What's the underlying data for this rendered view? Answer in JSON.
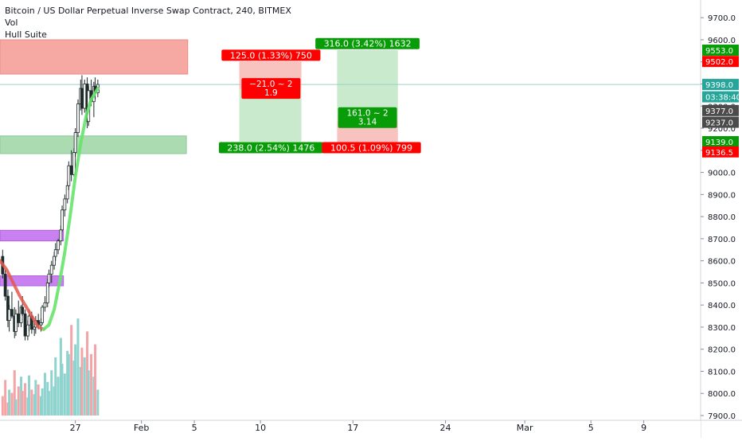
{
  "header": {
    "title": "Bitcoin / US Dollar Perpetual Inverse Swap Contract, 240, BITMEX",
    "indicators": [
      "Vol",
      "Hull Suite"
    ]
  },
  "colors": {
    "bull": "#26a69a",
    "candle": "#1f2a2a",
    "hull_up": "#66e36b",
    "hull_down": "#e0584d",
    "vol_red": "#f4a3a6",
    "vol_teal": "#8fd3cf",
    "zone_red": "#f6a39e",
    "zone_green": "#a5d9ad",
    "zone_purple": "#c67af0",
    "badge_red": "#ff0000",
    "badge_green": "#089c08",
    "badge_dark": "#4b4b4b",
    "badge_teal": "#26a69a"
  },
  "chart_data": {
    "type": "candlestick",
    "symbol": "Bitcoin / US Dollar Perpetual Inverse Swap Contract",
    "interval": "240",
    "exchange": "BITMEX",
    "ylim": [
      7900,
      9780
    ],
    "y_ticks": [
      "7900.0",
      "8000.0",
      "8100.0",
      "8200.0",
      "8300.0",
      "8400.0",
      "8500.0",
      "8600.0",
      "8700.0",
      "8800.0",
      "8900.0",
      "9000.0",
      "9100.0",
      "9200.0",
      "9300.0",
      "9400.0",
      "9500.0",
      "9600.0",
      "9700.0"
    ],
    "x_ticks": [
      "27",
      "Feb",
      "5",
      "10",
      "17",
      "24",
      "Mar",
      "5",
      "9"
    ],
    "x_tick_days": [
      27,
      32,
      36,
      41,
      48,
      55,
      61,
      66,
      70
    ],
    "x_range_days": [
      21.3,
      74.3
    ],
    "candles": [
      {
        "t": 21.5,
        "o": 8620,
        "h": 8650,
        "l": 8520,
        "c": 8540
      },
      {
        "t": 21.7,
        "o": 8540,
        "h": 8560,
        "l": 8420,
        "c": 8440
      },
      {
        "t": 21.9,
        "o": 8440,
        "h": 8470,
        "l": 8300,
        "c": 8330
      },
      {
        "t": 22.0,
        "o": 8330,
        "h": 8400,
        "l": 8280,
        "c": 8380
      },
      {
        "t": 22.2,
        "o": 8380,
        "h": 8460,
        "l": 8340,
        "c": 8350
      },
      {
        "t": 22.4,
        "o": 8350,
        "h": 8390,
        "l": 8250,
        "c": 8280
      },
      {
        "t": 22.5,
        "o": 8280,
        "h": 8380,
        "l": 8260,
        "c": 8360
      },
      {
        "t": 22.7,
        "o": 8360,
        "h": 8420,
        "l": 8300,
        "c": 8320
      },
      {
        "t": 22.9,
        "o": 8320,
        "h": 8400,
        "l": 8300,
        "c": 8390
      },
      {
        "t": 23.0,
        "o": 8390,
        "h": 8440,
        "l": 8350,
        "c": 8360
      },
      {
        "t": 23.2,
        "o": 8360,
        "h": 8380,
        "l": 8240,
        "c": 8260
      },
      {
        "t": 23.4,
        "o": 8260,
        "h": 8330,
        "l": 8240,
        "c": 8310
      },
      {
        "t": 23.5,
        "o": 8310,
        "h": 8380,
        "l": 8280,
        "c": 8350
      },
      {
        "t": 23.7,
        "o": 8350,
        "h": 8370,
        "l": 8270,
        "c": 8290
      },
      {
        "t": 23.9,
        "o": 8290,
        "h": 8320,
        "l": 8260,
        "c": 8300
      },
      {
        "t": 24.0,
        "o": 8300,
        "h": 8350,
        "l": 8270,
        "c": 8330
      },
      {
        "t": 24.2,
        "o": 8330,
        "h": 8360,
        "l": 8290,
        "c": 8310
      },
      {
        "t": 24.4,
        "o": 8310,
        "h": 8340,
        "l": 8280,
        "c": 8320
      },
      {
        "t": 24.5,
        "o": 8320,
        "h": 8400,
        "l": 8310,
        "c": 8390
      },
      {
        "t": 24.7,
        "o": 8390,
        "h": 8440,
        "l": 8370,
        "c": 8410
      },
      {
        "t": 24.9,
        "o": 8410,
        "h": 8520,
        "l": 8390,
        "c": 8500
      },
      {
        "t": 25.0,
        "o": 8500,
        "h": 8560,
        "l": 8480,
        "c": 8540
      },
      {
        "t": 25.2,
        "o": 8540,
        "h": 8600,
        "l": 8500,
        "c": 8580
      },
      {
        "t": 25.4,
        "o": 8580,
        "h": 8640,
        "l": 8560,
        "c": 8620
      },
      {
        "t": 25.5,
        "o": 8620,
        "h": 8680,
        "l": 8600,
        "c": 8650
      },
      {
        "t": 25.7,
        "o": 8650,
        "h": 8700,
        "l": 8630,
        "c": 8690
      },
      {
        "t": 25.9,
        "o": 8690,
        "h": 8760,
        "l": 8670,
        "c": 8740
      },
      {
        "t": 26.0,
        "o": 8740,
        "h": 8850,
        "l": 8730,
        "c": 8830
      },
      {
        "t": 26.2,
        "o": 8830,
        "h": 8900,
        "l": 8800,
        "c": 8880
      },
      {
        "t": 26.4,
        "o": 8880,
        "h": 8960,
        "l": 8860,
        "c": 8940
      },
      {
        "t": 26.5,
        "o": 8940,
        "h": 9050,
        "l": 8920,
        "c": 9030
      },
      {
        "t": 26.7,
        "o": 9030,
        "h": 9100,
        "l": 8960,
        "c": 8990
      },
      {
        "t": 26.9,
        "o": 8990,
        "h": 9110,
        "l": 8980,
        "c": 9090
      },
      {
        "t": 27.0,
        "o": 9090,
        "h": 9200,
        "l": 9070,
        "c": 9180
      },
      {
        "t": 27.2,
        "o": 9180,
        "h": 9330,
        "l": 9160,
        "c": 9310
      },
      {
        "t": 27.4,
        "o": 9310,
        "h": 9420,
        "l": 9280,
        "c": 9380
      },
      {
        "t": 27.5,
        "o": 9380,
        "h": 9440,
        "l": 9260,
        "c": 9290
      },
      {
        "t": 27.7,
        "o": 9290,
        "h": 9420,
        "l": 9270,
        "c": 9400
      },
      {
        "t": 27.9,
        "o": 9400,
        "h": 9430,
        "l": 9200,
        "c": 9230
      },
      {
        "t": 28.0,
        "o": 9230,
        "h": 9390,
        "l": 9210,
        "c": 9370
      },
      {
        "t": 28.2,
        "o": 9370,
        "h": 9420,
        "l": 9300,
        "c": 9320
      },
      {
        "t": 28.4,
        "o": 9320,
        "h": 9410,
        "l": 9250,
        "c": 9390
      },
      {
        "t": 28.5,
        "o": 9390,
        "h": 9430,
        "l": 9330,
        "c": 9360
      },
      {
        "t": 28.7,
        "o": 9360,
        "h": 9420,
        "l": 9340,
        "c": 9398
      }
    ],
    "volume": [
      30,
      55,
      20,
      40,
      35,
      70,
      25,
      45,
      60,
      38,
      50,
      28,
      62,
      40,
      33,
      55,
      48,
      30,
      42,
      66,
      52,
      38,
      70,
      45,
      90,
      60,
      120,
      80,
      65,
      100,
      95,
      140,
      85,
      110,
      150,
      75,
      105,
      90,
      130,
      70,
      95,
      60,
      110,
      40
    ],
    "volume_max": 160,
    "hull_suite": [
      {
        "t": 21.3,
        "v": 8600
      },
      {
        "t": 21.8,
        "v": 8560
      },
      {
        "t": 22.3,
        "v": 8500
      },
      {
        "t": 22.8,
        "v": 8440
      },
      {
        "t": 23.3,
        "v": 8390
      },
      {
        "t": 23.8,
        "v": 8340
      },
      {
        "t": 24.2,
        "v": 8300
      },
      {
        "t": 24.6,
        "v": 8290
      },
      {
        "t": 25.0,
        "v": 8310
      },
      {
        "t": 25.4,
        "v": 8380
      },
      {
        "t": 25.8,
        "v": 8500
      },
      {
        "t": 26.2,
        "v": 8640
      },
      {
        "t": 26.6,
        "v": 8800
      },
      {
        "t": 27.0,
        "v": 8980
      },
      {
        "t": 27.4,
        "v": 9130
      },
      {
        "t": 27.8,
        "v": 9250
      },
      {
        "t": 28.2,
        "v": 9330
      },
      {
        "t": 28.7,
        "v": 9380
      }
    ],
    "hull_turn_day": 24.6,
    "zones": [
      {
        "color": "red",
        "from": 21.3,
        "to": 35.5,
        "low": 9445,
        "high": 9600
      },
      {
        "color": "green",
        "from": 21.3,
        "to": 35.4,
        "low": 9085,
        "high": 9165
      },
      {
        "color": "purple",
        "from": 21.3,
        "to": 26.1,
        "low": 8690,
        "high": 8738
      },
      {
        "color": "purple",
        "from": 21.3,
        "to": 26.1,
        "low": 8487,
        "high": 8532
      }
    ],
    "positions": [
      {
        "side": "short",
        "from": 39.4,
        "to": 44.1,
        "entry": 9377,
        "stop": 9502,
        "target": 9139
      },
      {
        "side": "long",
        "from": 46.8,
        "to": 51.4,
        "entry": 9237,
        "stop": 9136.5,
        "target": 9553
      }
    ],
    "position_labels": [
      {
        "text": "125.0 (1.33%) 750",
        "kind": "red",
        "anchor_day": 41.8,
        "price": 9530
      },
      {
        "text": "238.0 (2.54%) 1476",
        "kind": "green",
        "anchor_day": 41.8,
        "price": 9112
      },
      {
        "text": "316.0 (3.42%) 1632",
        "kind": "green",
        "anchor_day": 49.1,
        "price": 9583
      },
      {
        "text": "100.5 (1.09%) 799",
        "kind": "red",
        "anchor_day": 49.4,
        "price": 9112
      }
    ],
    "ratio_labels": [
      {
        "lines": [
          "−21.0 ~ 2",
          "1.9"
        ],
        "kind": "red",
        "anchor_day": 41.8,
        "price": 9380
      },
      {
        "lines": [
          "161.0 ~ 2",
          "3.14"
        ],
        "kind": "green",
        "anchor_day": 49.1,
        "price": 9248
      }
    ],
    "horizontal_line": 9398,
    "price_badges": [
      {
        "text": "9553.0",
        "price": 9553,
        "kind": "green"
      },
      {
        "text": "9502.0",
        "price": 9502,
        "kind": "red"
      },
      {
        "text": "9398.0",
        "price": 9398,
        "kind": "teal"
      },
      {
        "text": "03:38:40",
        "price": 9342,
        "kind": "teal"
      },
      {
        "text": "9377.0",
        "price": 9280,
        "kind": "dark"
      },
      {
        "text": "9237.0",
        "price": 9227,
        "kind": "dark"
      },
      {
        "text": "9139.0",
        "price": 9139,
        "kind": "green"
      },
      {
        "text": "9136.5",
        "price": 9093,
        "kind": "red"
      }
    ]
  }
}
